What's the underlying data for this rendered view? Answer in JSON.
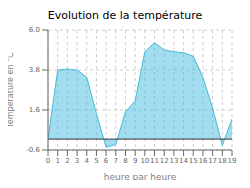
{
  "chart_data": {
    "type": "area",
    "title": "Evolution de la température",
    "x_label": "heure par heure",
    "y_label": "Température en °C",
    "x": [
      0,
      1,
      2,
      3,
      4,
      5,
      6,
      7,
      8,
      9,
      10,
      11,
      12,
      13,
      14,
      15,
      16,
      17,
      18,
      19
    ],
    "values": [
      0.0,
      3.8,
      3.85,
      3.8,
      3.4,
      1.4,
      -0.45,
      -0.3,
      1.5,
      2.1,
      4.8,
      5.3,
      4.9,
      4.8,
      4.75,
      4.55,
      3.4,
      1.7,
      -0.35,
      1.1
    ],
    "color": "#44bbdd",
    "baseline": 0.0,
    "xlim": [
      0,
      19
    ],
    "xticks": [
      0,
      1,
      2,
      3,
      4,
      5,
      6,
      7,
      8,
      9,
      10,
      11,
      12,
      13,
      14,
      15,
      16,
      17,
      18,
      19
    ],
    "ylim": [
      -0.6,
      6.0
    ],
    "yticks": [
      -0.6,
      1.6,
      3.8,
      {
        "value": 6.0,
        "label": "6.0"
      }
    ],
    "grid": true
  }
}
